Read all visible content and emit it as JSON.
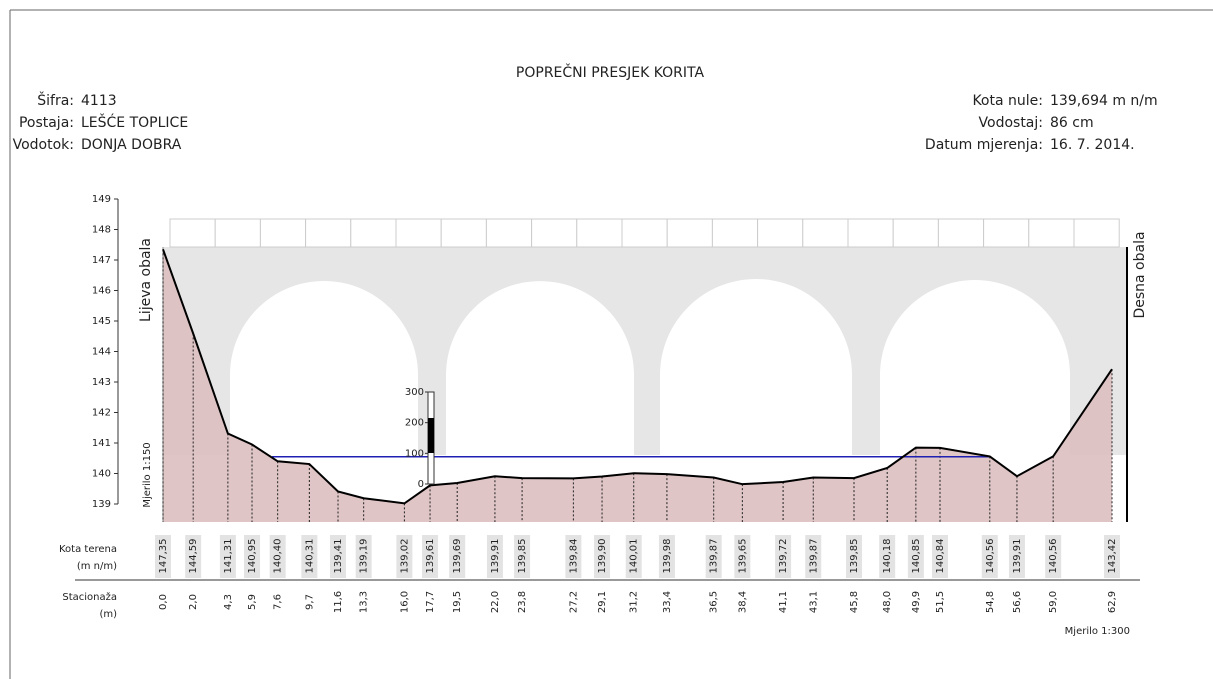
{
  "header": {
    "title": "POPREČNI PRESJEK KORITA",
    "left": [
      {
        "label": "Šifra:",
        "value": "4113"
      },
      {
        "label": "Postaja:",
        "value": "LEŠĆE TOPLICE"
      },
      {
        "label": "Vodotok:",
        "value": "DONJA DOBRA"
      }
    ],
    "right": [
      {
        "label": "Kota nule:",
        "value": "139,694 m n/m"
      },
      {
        "label": "Vodostaj:",
        "value": "86 cm"
      },
      {
        "label": "Datum mjerenja:",
        "value": "16. 7. 2014."
      }
    ]
  },
  "chart_data": {
    "type": "cross-section",
    "left_bank": "Lijeva obala",
    "right_bank": "Desna obala",
    "vertical_scale": "Mjerilo 1:150",
    "horizontal_scale": "Mjerilo 1:300",
    "elevation_row": [
      "Kota terena",
      "(m n/m)"
    ],
    "station_row": [
      "Stacionaža",
      "(m)"
    ],
    "x": [
      0,
      2,
      4.3,
      5.9,
      7.6,
      9.7,
      11.6,
      13.3,
      16,
      17.7,
      19.5,
      22,
      23.8,
      27.2,
      29.1,
      31.2,
      33.4,
      36.5,
      38.4,
      41.1,
      43.1,
      45.8,
      48,
      49.9,
      51.5,
      54.8,
      56.6,
      59,
      62.9
    ],
    "x_labels": [
      "0,0",
      "2,0",
      "4,3",
      "5,9",
      "7,6",
      "9,7",
      "11,6",
      "13,3",
      "16,0",
      "17,7",
      "19,5",
      "22,0",
      "23,8",
      "27,2",
      "29,1",
      "31,2",
      "33,4",
      "36,5",
      "38,4",
      "41,1",
      "43,1",
      "45,8",
      "48,0",
      "49,9",
      "51,5",
      "54,8",
      "56,6",
      "59,0",
      "62,9"
    ],
    "values": [
      147.35,
      144.59,
      141.31,
      140.95,
      140.4,
      140.31,
      139.41,
      139.19,
      139.02,
      139.61,
      139.69,
      139.91,
      139.85,
      139.84,
      139.9,
      140.01,
      139.98,
      139.87,
      139.65,
      139.72,
      139.87,
      139.85,
      140.18,
      140.85,
      140.84,
      140.56,
      139.91,
      140.56,
      143.42
    ],
    "value_labels": [
      "147,35",
      "144,59",
      "141,31",
      "140,95",
      "140,40",
      "140,31",
      "139,41",
      "139,19",
      "139,02",
      "139,61",
      "139,69",
      "139,91",
      "139,85",
      "139,84",
      "139,90",
      "140,01",
      "139,98",
      "139,87",
      "139,65",
      "139,72",
      "139,87",
      "139,85",
      "140,18",
      "140,85",
      "140,84",
      "140,56",
      "139,91",
      "140,56",
      "143,42"
    ],
    "water_level": 140.55,
    "line_color": "#000000",
    "fill_color": "#dcbfbf",
    "water_color": "#1f1fb4",
    "ylim": [
      139,
      149
    ],
    "yticks": [
      139,
      140,
      141,
      142,
      143,
      144,
      145,
      146,
      147,
      148,
      149
    ],
    "gauge_ylim": [
      0,
      300
    ],
    "gauge_ticks": [
      0,
      100,
      200,
      300
    ]
  }
}
